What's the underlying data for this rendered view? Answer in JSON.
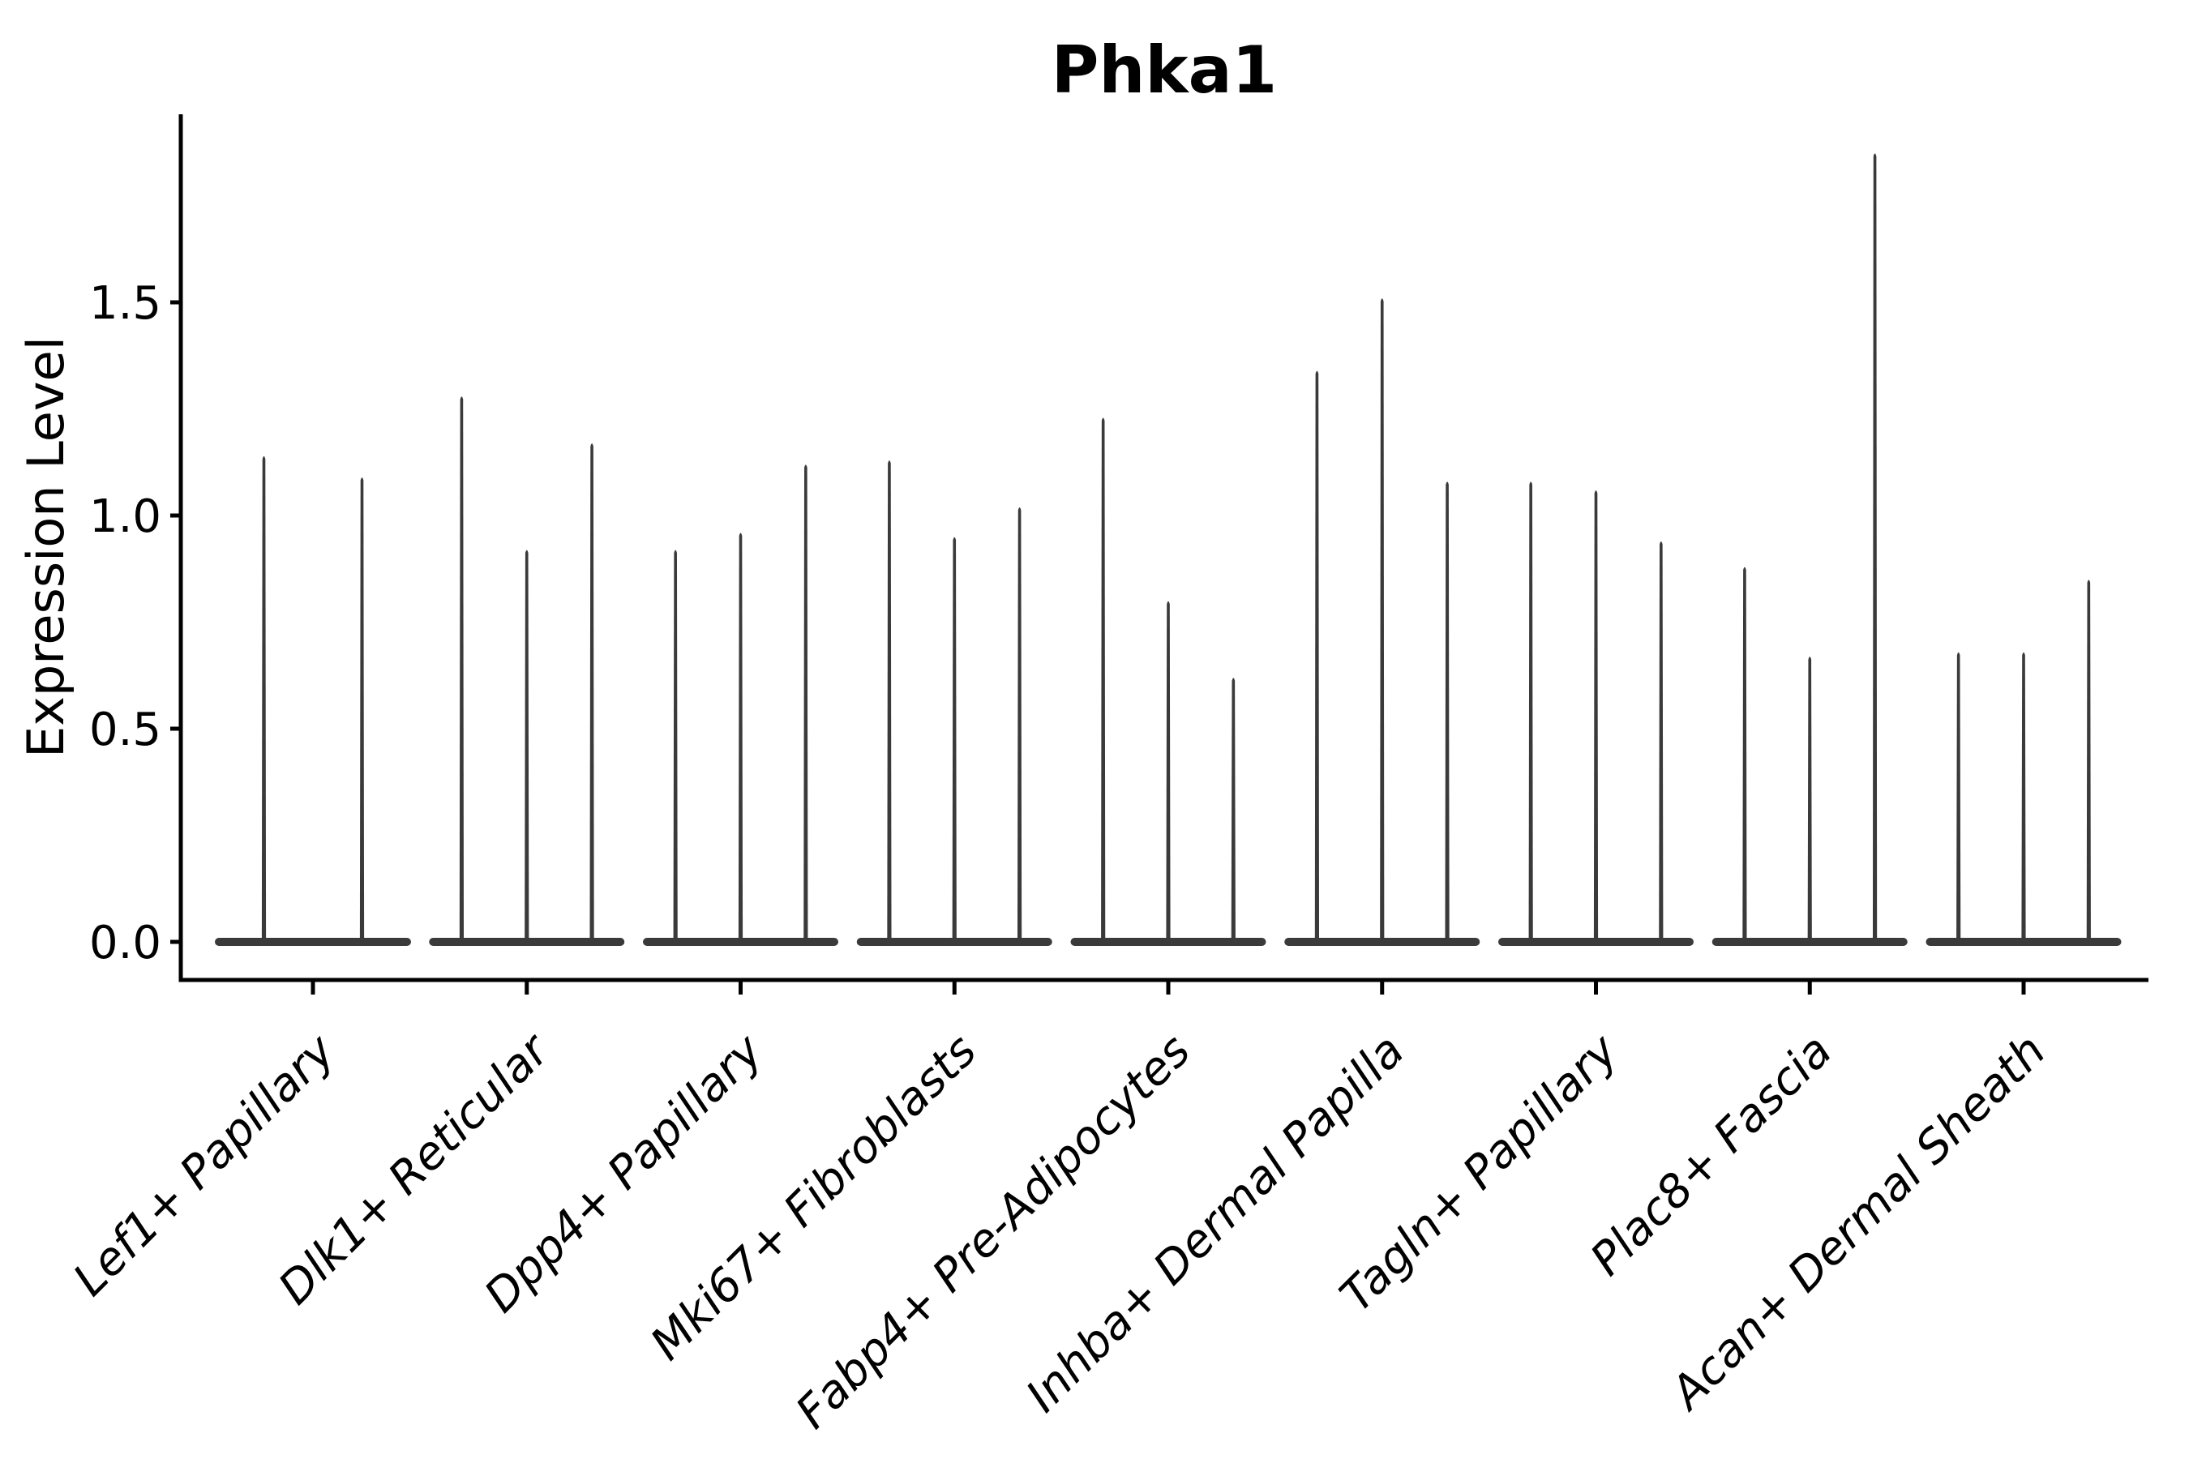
{
  "chart_data": {
    "type": "violin",
    "title": "Phka1",
    "xlabel": "",
    "ylabel": "Expression Level",
    "yticks": [
      0.0,
      0.5,
      1.0,
      1.5
    ],
    "ytick_labels": [
      "0.0",
      "0.5",
      "1.0",
      "1.5"
    ],
    "ylim": [
      -0.09,
      1.94
    ],
    "grid": false,
    "legend_position": "none",
    "style": "each violin is a dense flat mass at expression 0 with a very thin spike rising to its maximum expression value; violins per category share one merged flat base bar at 0",
    "categories": [
      "Lef1+ Papillary",
      "Dlk1+ Reticular",
      "Dpp4+ Papillary",
      "Mki67+ Fibroblasts",
      "Fabp4+ Pre-Adipocytes",
      "Inhba+ Dermal Papilla",
      "Tagln+ Papillary",
      "Plac8+ Fascia",
      "Acan+ Dermal Sheath"
    ],
    "groups": [
      {
        "category": "Lef1+ Papillary",
        "violin_max_expression": [
          1.14,
          1.09
        ]
      },
      {
        "category": "Dlk1+ Reticular",
        "violin_max_expression": [
          1.28,
          0.92,
          1.17
        ]
      },
      {
        "category": "Dpp4+ Papillary",
        "violin_max_expression": [
          0.92,
          0.96,
          1.12
        ]
      },
      {
        "category": "Mki67+ Fibroblasts",
        "violin_max_expression": [
          1.13,
          0.95,
          1.02
        ]
      },
      {
        "category": "Fabp4+ Pre-Adipocytes",
        "violin_max_expression": [
          1.23,
          0.8,
          0.62
        ]
      },
      {
        "category": "Inhba+ Dermal Papilla",
        "violin_max_expression": [
          1.34,
          1.51,
          1.08
        ]
      },
      {
        "category": "Tagln+ Papillary",
        "violin_max_expression": [
          1.08,
          1.06,
          0.94
        ]
      },
      {
        "category": "Plac8+ Fascia",
        "violin_max_expression": [
          0.88,
          0.67,
          1.85
        ]
      },
      {
        "category": "Acan+ Dermal Sheath",
        "violin_max_expression": [
          0.68,
          0.68,
          0.85
        ]
      }
    ],
    "colors": {
      "violin": "#3a3a3a",
      "axis": "#000000",
      "text": "#000000",
      "background": "#ffffff"
    }
  }
}
